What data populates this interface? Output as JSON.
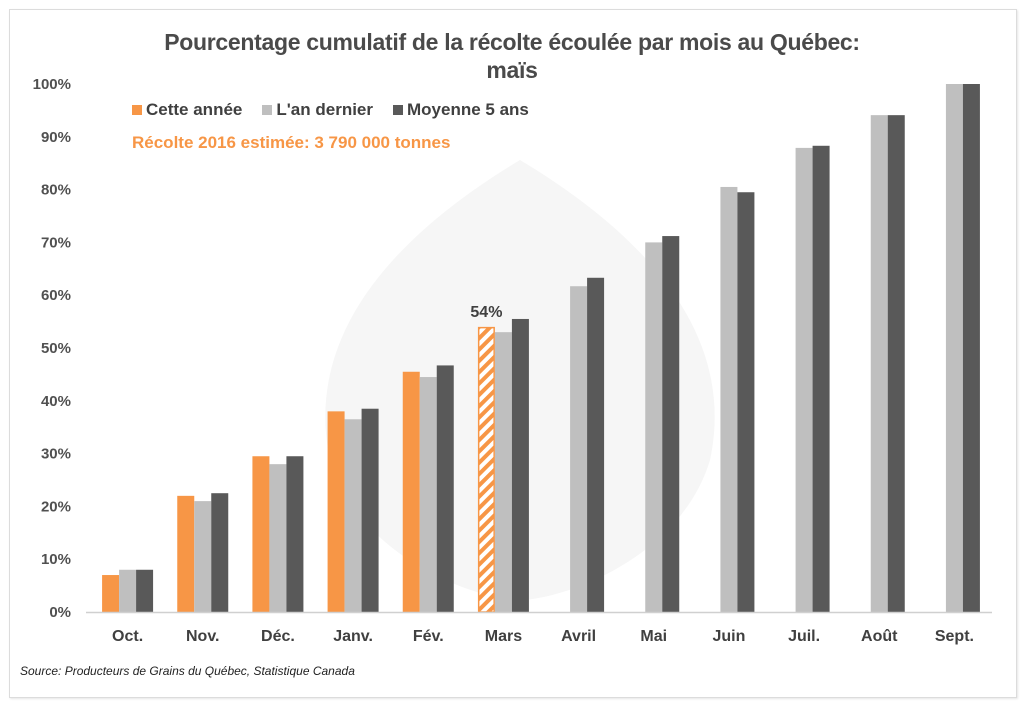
{
  "chart_data": {
    "type": "bar",
    "title": "Pourcentage cumulatif de la récolte écoulée par mois au Québec:",
    "subtitle": "maïs",
    "xlabel": "",
    "ylabel": "",
    "ylim": [
      0,
      100
    ],
    "yticks": [
      "0%",
      "10%",
      "20%",
      "30%",
      "40%",
      "50%",
      "60%",
      "70%",
      "80%",
      "90%",
      "100%"
    ],
    "grid": false,
    "legend_position": "top-left",
    "categories": [
      "Oct.",
      "Nov.",
      "Déc.",
      "Janv.",
      "Fév.",
      "Mars",
      "Avril",
      "Mai",
      "Juin",
      "Juil.",
      "Août",
      "Sept."
    ],
    "series": [
      {
        "name": "Cette année",
        "color": "#f79646",
        "values": [
          7,
          22,
          29.5,
          38,
          45.5,
          54,
          null,
          null,
          null,
          null,
          null,
          null
        ],
        "hatched_index": 5
      },
      {
        "name": "L'an dernier",
        "color": "#bfbfbf",
        "values": [
          8,
          21,
          28,
          36.5,
          44.5,
          53,
          61.7,
          70,
          80.5,
          87.9,
          94.1,
          100
        ]
      },
      {
        "name": "Moyenne 5 ans",
        "color": "#595959",
        "values": [
          8,
          22.5,
          29.5,
          38.5,
          46.7,
          55.5,
          63.3,
          71.2,
          79.5,
          88.3,
          94.1,
          100
        ]
      }
    ],
    "annotations": [
      {
        "text": "54%",
        "category": "Mars",
        "series": "Cette année"
      },
      {
        "text": "Récolte 2016 estimée: 3 790 000 tonnes"
      }
    ],
    "source": "Source: Producteurs de Grains du Québec, Statistique Canada"
  },
  "legend": {
    "items": [
      {
        "label": "Cette année",
        "color": "#f79646"
      },
      {
        "label": "L'an dernier",
        "color": "#bfbfbf"
      },
      {
        "label": "Moyenne 5 ans",
        "color": "#595959"
      }
    ]
  },
  "note": "Récolte 2016 estimée: 3 790 000 tonnes",
  "bar_label": "54%"
}
